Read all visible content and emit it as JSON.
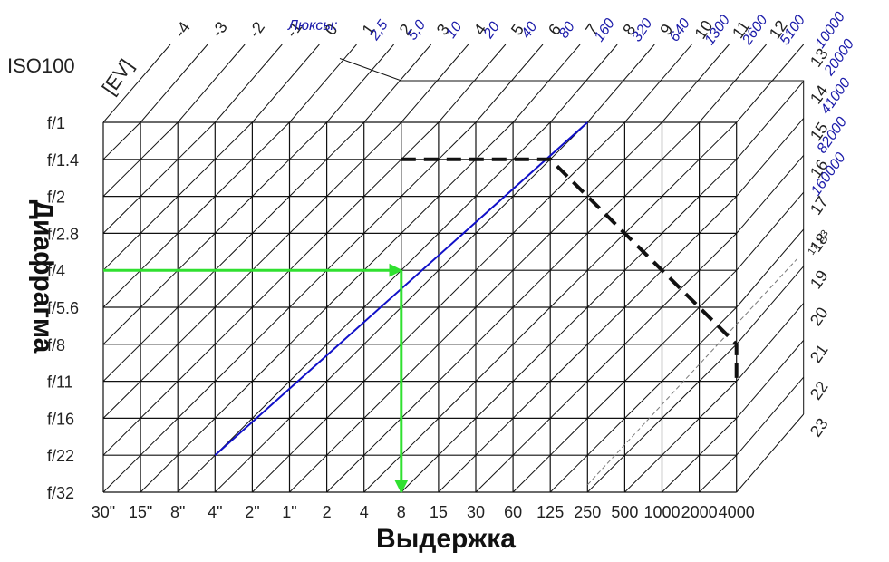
{
  "chart_data": {
    "type": "line",
    "title": "",
    "iso_label": "ISO100",
    "ev_unit_label": "[EV]",
    "lux_label": "Люксы:",
    "xlabel": "Выдержка",
    "ylabel": "Диафрагма",
    "shutter_speeds": [
      "30\"",
      "15\"",
      "8\"",
      "4\"",
      "2\"",
      "1\"",
      "2",
      "4",
      "8",
      "15",
      "30",
      "60",
      "125",
      "250",
      "500",
      "1000",
      "2000",
      "4000"
    ],
    "apertures": [
      "f/1",
      "f/1.4",
      "f/2",
      "f/2.8",
      "f/4",
      "f/5.6",
      "f/8",
      "f/11",
      "f/16",
      "f/22",
      "f/32"
    ],
    "ev_top": [
      "-4",
      "-3",
      "-2",
      "-1",
      "0",
      "1",
      "2",
      "3",
      "4",
      "5",
      "6",
      "7",
      "8",
      "9",
      "10",
      "11",
      "12"
    ],
    "ev_right": [
      "13",
      "14",
      "15",
      "16",
      "17",
      "18",
      "19",
      "20",
      "21",
      "22",
      "23"
    ],
    "lux_values": [
      "2,5",
      "5,0",
      "10",
      "20",
      "40",
      "80",
      "160",
      "320",
      "640",
      "1300",
      "2600",
      "5100",
      "10000",
      "20000",
      "41000",
      "82000",
      "160000"
    ],
    "extra_ev_label": "17 1/3",
    "grid": true,
    "series": [
      {
        "color": "#1010c8",
        "points": [
          {
            "shutter": "4\"",
            "aperture": "f/22"
          },
          {
            "shutter": "250",
            "aperture": "f/1"
          }
        ]
      },
      {
        "color": "#111111",
        "style": "dashed",
        "points": [
          {
            "shutter": "8",
            "aperture": "f/1.4"
          },
          {
            "shutter": "125",
            "aperture": "f/1.4"
          },
          {
            "shutter": "4000",
            "aperture": "f/8"
          },
          {
            "shutter": "4000",
            "aperture": "f/11"
          }
        ]
      },
      {
        "color": "#30e030",
        "style": "arrow",
        "points": [
          {
            "shutter": "30\"",
            "aperture": "f/4"
          },
          {
            "shutter": "8",
            "aperture": "f/4"
          }
        ]
      },
      {
        "color": "#30e030",
        "style": "arrow",
        "points": [
          {
            "shutter": "8",
            "aperture": "f/4"
          },
          {
            "shutter": "8",
            "aperture": "f/32"
          }
        ]
      }
    ]
  }
}
